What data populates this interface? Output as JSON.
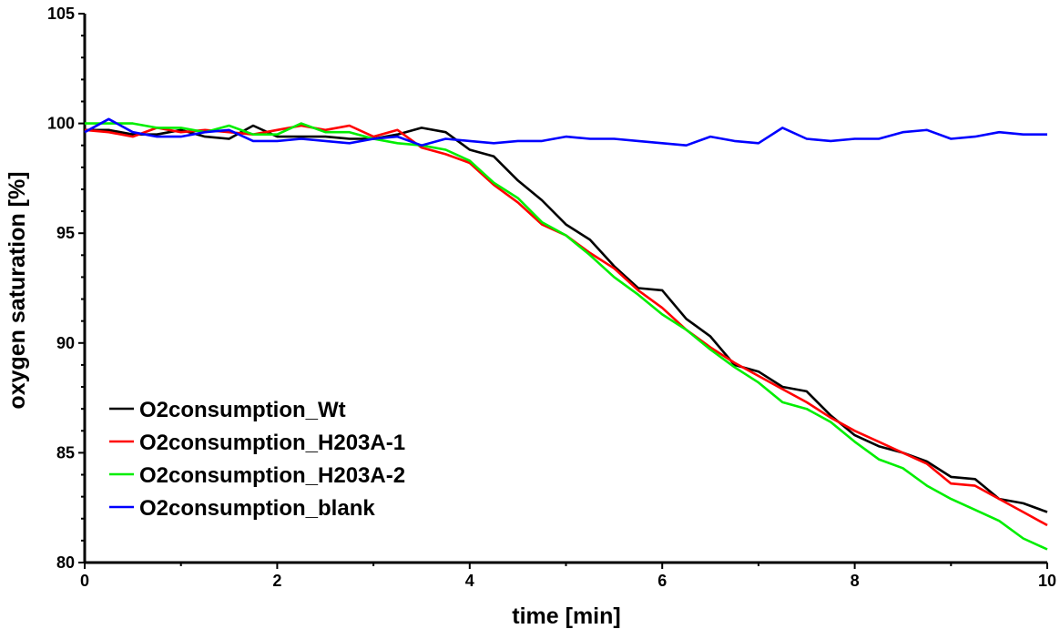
{
  "chart_data": {
    "type": "line",
    "title": "",
    "xlabel": "time [min]",
    "ylabel": "oxygen saturation [%]",
    "xlim": [
      0,
      10
    ],
    "ylim": [
      80,
      105
    ],
    "xticks": [
      0,
      2,
      4,
      6,
      8,
      10
    ],
    "yticks": [
      80,
      85,
      90,
      95,
      100,
      105
    ],
    "grid": false,
    "legend_position": "lower-left",
    "x": [
      0,
      0.25,
      0.5,
      0.75,
      1,
      1.25,
      1.5,
      1.75,
      2,
      2.25,
      2.5,
      2.75,
      3,
      3.25,
      3.5,
      3.75,
      4,
      4.25,
      4.5,
      4.75,
      5,
      5.25,
      5.5,
      5.75,
      6,
      6.25,
      6.5,
      6.75,
      7,
      7.25,
      7.5,
      7.75,
      8,
      8.25,
      8.5,
      8.75,
      9,
      9.25,
      9.5,
      9.75,
      10
    ],
    "series": [
      {
        "name": "O2consumption_Wt",
        "color": "#000000",
        "values": [
          99.7,
          99.7,
          99.5,
          99.5,
          99.7,
          99.4,
          99.3,
          99.9,
          99.4,
          99.4,
          99.4,
          99.3,
          99.3,
          99.5,
          99.8,
          99.6,
          98.8,
          98.5,
          97.4,
          96.5,
          95.4,
          94.7,
          93.5,
          92.5,
          92.4,
          91.1,
          90.3,
          89.0,
          88.7,
          88.0,
          87.8,
          86.7,
          85.8,
          85.3,
          85.0,
          84.6,
          83.9,
          83.8,
          82.9,
          82.7,
          82.3
        ]
      },
      {
        "name": "O2consumption_H203A-1",
        "color": "#ff0000",
        "values": [
          99.7,
          99.6,
          99.4,
          99.8,
          99.6,
          99.7,
          99.6,
          99.5,
          99.7,
          99.9,
          99.7,
          99.9,
          99.4,
          99.7,
          98.9,
          98.6,
          98.2,
          97.2,
          96.4,
          95.4,
          94.9,
          94.1,
          93.4,
          92.4,
          91.6,
          90.6,
          89.8,
          89.1,
          88.5,
          87.9,
          87.3,
          86.6,
          86.0,
          85.5,
          85.0,
          84.5,
          83.6,
          83.5,
          82.9,
          82.3,
          81.7
        ]
      },
      {
        "name": "O2consumption_H203A-2",
        "color": "#00ee00",
        "values": [
          100.0,
          100.0,
          100.0,
          99.8,
          99.8,
          99.6,
          99.9,
          99.5,
          99.5,
          100.0,
          99.6,
          99.6,
          99.3,
          99.1,
          99.0,
          98.8,
          98.3,
          97.3,
          96.6,
          95.5,
          94.9,
          94.0,
          93.0,
          92.2,
          91.3,
          90.6,
          89.7,
          88.9,
          88.2,
          87.3,
          87.0,
          86.4,
          85.5,
          84.7,
          84.3,
          83.5,
          82.9,
          82.4,
          81.9,
          81.1,
          80.6
        ]
      },
      {
        "name": "O2consumption_blank",
        "color": "#0000ff",
        "values": [
          99.6,
          100.2,
          99.6,
          99.4,
          99.4,
          99.6,
          99.7,
          99.2,
          99.2,
          99.3,
          99.2,
          99.1,
          99.3,
          99.4,
          99.0,
          99.3,
          99.2,
          99.1,
          99.2,
          99.2,
          99.4,
          99.3,
          99.3,
          99.2,
          99.1,
          99.0,
          99.4,
          99.2,
          99.1,
          99.8,
          99.3,
          99.2,
          99.3,
          99.3,
          99.6,
          99.7,
          99.3,
          99.4,
          99.6,
          99.5,
          99.5
        ]
      }
    ]
  }
}
